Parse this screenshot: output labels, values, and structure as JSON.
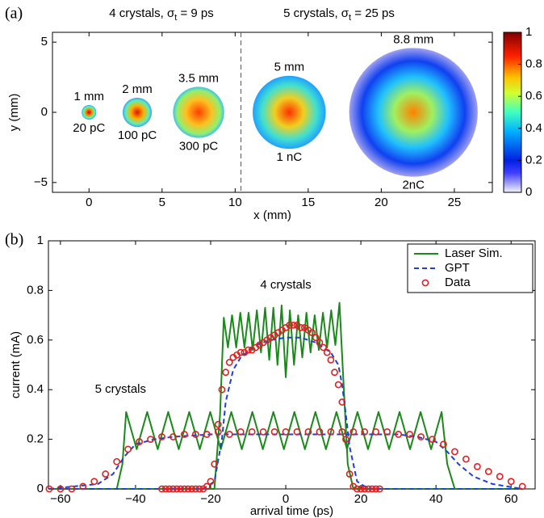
{
  "chart_data": [
    {
      "type": "image",
      "panel_label": "(a)",
      "titles": [
        {
          "prefix": "4 crystals,  σ",
          "sub": "t",
          "suffix": " = 9 ps"
        },
        {
          "prefix": "5 crystals,  σ",
          "sub": "t",
          "suffix": " = 25 ps"
        }
      ],
      "xlabel": "x (mm)",
      "ylabel": "y (mm)",
      "xlim": [
        -2.5,
        27.6
      ],
      "ylim": [
        -5.7,
        5.7
      ],
      "xticks": [
        0,
        5,
        10,
        15,
        20,
        25
      ],
      "yticks": [
        {
          "value": -5,
          "label": "−5"
        },
        0,
        5
      ],
      "divider_x": 10.4,
      "spots": [
        {
          "x": 0,
          "y": 0,
          "diameter": 1,
          "size_label": "1 mm",
          "charge_label": "20 pC"
        },
        {
          "x": 3.3,
          "y": 0,
          "diameter": 2,
          "size_label": "2 mm",
          "charge_label": "100 pC"
        },
        {
          "x": 7.5,
          "y": 0,
          "diameter": 3.5,
          "size_label": "3.5 mm",
          "charge_label": "300 pC"
        },
        {
          "x": 13.7,
          "y": 0,
          "diameter": 5,
          "size_label": "5 mm",
          "charge_label": "1 nC"
        },
        {
          "x": 22.2,
          "y": 0,
          "diameter": 8.8,
          "size_label": "8.8 mm",
          "charge_label": "2nC"
        }
      ],
      "colorbar": {
        "lim": [
          0,
          1
        ],
        "ticks": [
          0,
          0.2,
          0.4,
          0.6,
          0.8,
          1
        ]
      }
    },
    {
      "type": "line",
      "panel_label": "(b)",
      "xlabel": "arrival time (ps)",
      "ylabel": "current (mA)",
      "xlim": [
        -63.2,
        66.4
      ],
      "ylim": [
        0,
        1
      ],
      "xticks": [
        {
          "value": -60,
          "label": "−60"
        },
        {
          "value": -40,
          "label": "−40"
        },
        {
          "value": -20,
          "label": "−20"
        },
        0,
        20,
        40,
        60
      ],
      "yticks": [
        0,
        0.2,
        0.4,
        0.6,
        0.8,
        1
      ],
      "annotations": [
        "4 crystals",
        "5 crystals"
      ],
      "legend": "upper right",
      "series": [
        {
          "name": "Laser Sim.",
          "color": "#1a8a1a",
          "style": "solid",
          "x": [
            -63,
            -19,
            -17.5,
            -16.5,
            -15.4,
            -14.3,
            -13.2,
            -12.1,
            -11,
            -9.9,
            -8.8,
            -7.7,
            -6.6,
            -5.5,
            -4.4,
            -3.3,
            -2.2,
            -1.1,
            0,
            1.1,
            2.2,
            3.3,
            4.4,
            5.5,
            6.6,
            7.7,
            8.8,
            9.9,
            11,
            12.1,
            13.2,
            14.3,
            15.3,
            16.5,
            18,
            63,
            null,
            -63,
            -45,
            -43.5,
            -42.5,
            -39.7,
            -36.9,
            -34.1,
            -31.3,
            -28.5,
            -25.7,
            -22.9,
            -20.1,
            -17.3,
            -14.5,
            -11.7,
            -8.9,
            -6.1,
            -3.3,
            -0.5,
            2.3,
            5.1,
            7.9,
            10.7,
            13.5,
            16.3,
            19.1,
            21.9,
            24.7,
            27.5,
            30.3,
            33.1,
            35.9,
            38.7,
            41.5,
            43,
            45,
            63
          ],
          "values": [
            0,
            0,
            0.3,
            0.69,
            0.57,
            0.7,
            0.57,
            0.71,
            0.57,
            0.71,
            0.56,
            0.72,
            0.55,
            0.73,
            0.52,
            0.73,
            0.5,
            0.74,
            0.45,
            0.72,
            0.5,
            0.7,
            0.53,
            0.71,
            0.55,
            0.7,
            0.56,
            0.71,
            0.57,
            0.72,
            0.58,
            0.75,
            0.45,
            0.1,
            0,
            0,
            null,
            0,
            0,
            0.1,
            0.31,
            0.16,
            0.31,
            0.16,
            0.31,
            0.16,
            0.31,
            0.16,
            0.31,
            0.16,
            0.31,
            0.16,
            0.31,
            0.16,
            0.31,
            0.16,
            0.31,
            0.16,
            0.31,
            0.16,
            0.31,
            0.16,
            0.31,
            0.16,
            0.31,
            0.16,
            0.31,
            0.16,
            0.31,
            0.16,
            0.31,
            0.1,
            0,
            0
          ]
        },
        {
          "name": "GPT",
          "color": "#1f3fd6",
          "style": "dashed",
          "x": [
            -63,
            -22,
            -19,
            -17,
            -16,
            -14,
            -12,
            -8,
            -4,
            0,
            4,
            8,
            12,
            14,
            15,
            16,
            17,
            19,
            22,
            63,
            null,
            -63,
            -50,
            -46,
            -43,
            -40,
            -35,
            -30,
            -20,
            -10,
            0,
            10,
            20,
            30,
            35,
            40,
            43,
            46,
            50,
            55,
            63
          ],
          "values": [
            0,
            0,
            0.03,
            0.2,
            0.35,
            0.48,
            0.53,
            0.58,
            0.6,
            0.61,
            0.61,
            0.59,
            0.55,
            0.5,
            0.42,
            0.3,
            0.17,
            0.03,
            0,
            0,
            null,
            0,
            0.02,
            0.06,
            0.13,
            0.18,
            0.2,
            0.21,
            0.22,
            0.22,
            0.22,
            0.22,
            0.22,
            0.22,
            0.21,
            0.19,
            0.15,
            0.1,
            0.05,
            0.02,
            0
          ]
        },
        {
          "name": "Data",
          "color": "#e02020",
          "style": "markers",
          "x": [
            -33,
            -32,
            -31,
            -30,
            -29,
            -28,
            -27,
            -26,
            -25,
            -24,
            -23,
            -22,
            -21,
            -20,
            -19,
            -18,
            -17,
            -16,
            -15,
            -14,
            -13,
            -12,
            -11,
            -10,
            -9,
            -8,
            -7,
            -6,
            -5,
            -4,
            -3,
            -2,
            -1,
            0,
            1,
            2,
            3,
            4,
            5,
            6,
            7,
            8,
            9,
            10,
            11,
            12,
            13,
            14,
            15,
            16,
            17,
            18,
            19,
            20,
            21,
            22,
            23,
            24,
            25,
            -63,
            -60,
            -57,
            -54,
            -51,
            -48,
            -45,
            -42,
            -39,
            -36,
            -33,
            -30,
            -27,
            -24,
            -21,
            -18,
            -15,
            -12,
            -9,
            -6,
            -3,
            0,
            3,
            6,
            9,
            12,
            15,
            18,
            21,
            24,
            27,
            30,
            33,
            36,
            39,
            42,
            45,
            48,
            51,
            54,
            57,
            60,
            63
          ],
          "values": [
            0,
            0,
            0,
            0,
            0,
            0,
            0,
            0,
            0,
            0,
            0,
            0,
            0.01,
            0.03,
            0.1,
            0.26,
            0.4,
            0.47,
            0.51,
            0.53,
            0.54,
            0.55,
            0.55,
            0.56,
            0.56,
            0.57,
            0.58,
            0.59,
            0.6,
            0.61,
            0.62,
            0.63,
            0.64,
            0.65,
            0.66,
            0.66,
            0.66,
            0.65,
            0.65,
            0.64,
            0.63,
            0.61,
            0.59,
            0.57,
            0.55,
            0.52,
            0.47,
            0.42,
            0.35,
            0.2,
            0.06,
            0.01,
            0,
            0,
            0,
            0,
            0,
            0,
            0,
            0,
            0,
            0,
            0.01,
            0.03,
            0.06,
            0.11,
            0.16,
            0.19,
            0.2,
            0.21,
            0.21,
            0.22,
            0.22,
            0.22,
            0.23,
            0.22,
            0.23,
            0.23,
            0.23,
            0.23,
            0.23,
            0.23,
            0.23,
            0.23,
            0.23,
            0.23,
            0.23,
            0.23,
            0.23,
            0.23,
            0.22,
            0.22,
            0.21,
            0.2,
            0.18,
            0.15,
            0.12,
            0.09,
            0.07,
            0.05,
            0.03,
            0.01
          ]
        }
      ]
    }
  ]
}
